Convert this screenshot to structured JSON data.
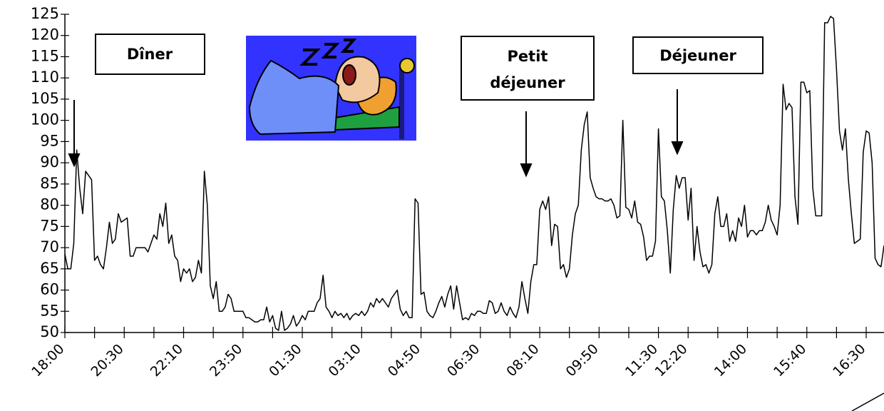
{
  "chart_data": {
    "type": "line",
    "color": "#000000",
    "ylim": [
      50,
      125
    ],
    "yticks": [
      50,
      55,
      60,
      65,
      70,
      75,
      80,
      85,
      90,
      95,
      100,
      105,
      110,
      115,
      120,
      125
    ],
    "annotations": [
      {
        "lines": [
          "Dîner"
        ]
      },
      {
        "lines": [
          "Petit",
          "déjeuner"
        ]
      },
      {
        "lines": [
          "Déjeuner"
        ]
      }
    ],
    "categories": [
      "18:00",
      null,
      null,
      null,
      null,
      null,
      null,
      null,
      null,
      null,
      null,
      null,
      null,
      null,
      null,
      null,
      null,
      null,
      null,
      null,
      "20:30",
      null,
      null,
      null,
      null,
      null,
      null,
      null,
      null,
      null,
      null,
      null,
      null,
      null,
      null,
      null,
      null,
      null,
      null,
      null,
      "22:10",
      null,
      null,
      null,
      null,
      null,
      null,
      null,
      null,
      null,
      null,
      null,
      null,
      null,
      null,
      null,
      null,
      null,
      null,
      null,
      "23:50",
      null,
      null,
      null,
      null,
      null,
      null,
      null,
      null,
      null,
      null,
      null,
      null,
      null,
      null,
      null,
      null,
      null,
      null,
      null,
      "01:30",
      null,
      null,
      null,
      null,
      null,
      null,
      null,
      null,
      null,
      null,
      null,
      null,
      null,
      null,
      null,
      null,
      null,
      null,
      null,
      "03:10",
      null,
      null,
      null,
      null,
      null,
      null,
      null,
      null,
      null,
      null,
      null,
      null,
      null,
      null,
      null,
      null,
      null,
      null,
      null,
      "04:50",
      null,
      null,
      null,
      null,
      null,
      null,
      null,
      null,
      null,
      null,
      null,
      null,
      null,
      null,
      null,
      null,
      null,
      null,
      null,
      "06:30",
      null,
      null,
      null,
      null,
      null,
      null,
      null,
      null,
      null,
      null,
      null,
      null,
      null,
      null,
      null,
      null,
      null,
      null,
      null,
      "08:10",
      null,
      null,
      null,
      null,
      null,
      null,
      null,
      null,
      null,
      null,
      null,
      null,
      null,
      null,
      null,
      null,
      null,
      null,
      null,
      "09:50",
      null,
      null,
      null,
      null,
      null,
      null,
      null,
      null,
      null,
      null,
      null,
      null,
      null,
      null,
      null,
      null,
      null,
      null,
      null,
      "11:30",
      null,
      null,
      null,
      null,
      null,
      null,
      null,
      null,
      null,
      "12:20",
      null,
      null,
      null,
      null,
      null,
      null,
      null,
      null,
      null,
      null,
      null,
      null,
      null,
      null,
      null,
      null,
      null,
      null,
      null,
      "14:00",
      null,
      null,
      null,
      null,
      null,
      null,
      null,
      null,
      null,
      null,
      null,
      null,
      null,
      null,
      null,
      null,
      null,
      null,
      null,
      "15:40",
      null,
      null,
      null,
      null,
      null,
      null,
      null,
      null,
      null,
      null,
      null,
      null,
      null,
      null,
      null,
      null,
      null,
      null,
      null,
      "16:30",
      null,
      null,
      null,
      null,
      null,
      null
    ],
    "values": [
      68.5,
      65,
      65,
      71,
      93,
      84,
      78,
      88,
      87,
      86,
      67,
      68,
      66,
      65,
      70,
      76,
      71,
      72,
      78,
      76,
      76.5,
      77,
      68,
      68,
      70,
      70,
      70,
      70,
      69,
      71,
      73,
      72,
      78,
      75,
      80.5,
      71,
      73,
      68,
      67,
      62,
      65,
      64,
      65,
      62,
      63,
      67,
      64,
      88,
      80,
      61,
      58,
      62,
      55,
      55,
      56,
      59,
      58,
      55,
      55,
      55,
      55,
      53.5,
      53.5,
      53,
      52.5,
      52.5,
      53,
      53,
      56,
      52.5,
      54,
      51,
      50.5,
      55,
      50.5,
      51,
      52,
      54,
      51.5,
      52.5,
      54,
      53,
      55,
      55,
      55,
      57,
      58,
      63.5,
      56,
      55,
      53.5,
      55,
      54,
      54.5,
      53.5,
      54.5,
      53,
      54,
      54.5,
      54,
      55,
      54,
      55,
      57,
      56,
      58,
      57,
      58,
      57,
      56,
      58,
      59,
      60,
      55.5,
      54,
      55,
      53.5,
      53.5,
      81.5,
      80.5,
      59,
      59.5,
      55,
      54,
      53.5,
      55,
      57,
      58.5,
      56,
      59,
      61,
      55.5,
      61,
      57,
      53,
      53.5,
      53,
      54.5,
      54,
      55,
      55,
      54.5,
      54.5,
      57.5,
      57,
      54.5,
      55,
      57,
      55,
      54,
      56,
      54.5,
      53.5,
      56,
      62,
      58,
      54.5,
      62,
      66,
      66,
      79,
      81,
      79,
      82,
      70.5,
      75.5,
      75,
      65,
      66,
      63,
      65,
      73,
      78,
      80,
      93,
      99,
      102,
      86.5,
      84,
      82,
      81.5,
      81.5,
      81,
      81,
      81.5,
      80,
      77,
      77.5,
      100,
      79.5,
      79,
      77,
      81,
      76,
      75.5,
      72.5,
      67,
      68,
      68,
      71.5,
      98,
      82,
      81,
      74,
      64,
      79,
      87,
      84,
      86.5,
      86.5,
      76.5,
      84,
      67,
      75,
      69,
      65.5,
      66,
      64,
      66,
      78,
      82,
      75,
      75,
      78,
      71.5,
      74,
      71.5,
      77,
      75,
      80,
      72.5,
      74,
      74,
      73,
      74,
      74,
      76,
      80,
      76.5,
      75,
      73,
      80,
      108.5,
      102.5,
      104,
      103,
      82,
      75.5,
      109,
      109,
      106.5,
      107,
      84,
      77.5,
      77.5,
      77.5,
      123,
      123,
      124.5,
      124,
      112,
      97.5,
      93,
      98,
      86,
      78,
      71,
      71.5,
      72,
      92.5,
      97.5,
      97,
      90,
      67.5,
      66,
      65.5,
      70.5
    ]
  }
}
